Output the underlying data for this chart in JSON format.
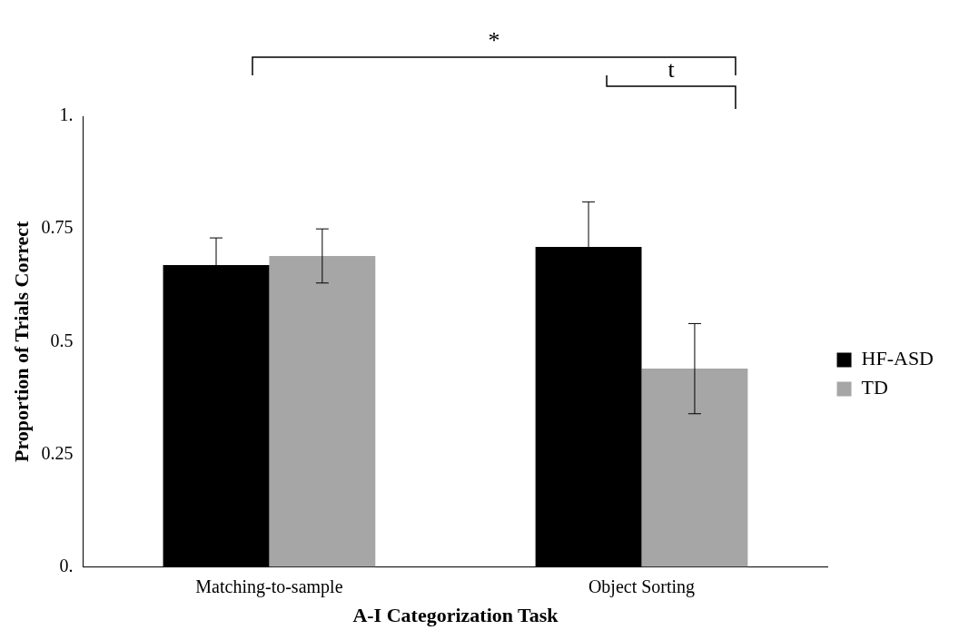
{
  "chart_data": {
    "type": "bar",
    "xlabel": "A-I Categorization Task",
    "ylabel": "Proportion of Trials Correct",
    "categories": [
      "Matching-to-sample",
      "Object Sorting"
    ],
    "series": [
      {
        "name": "HF-ASD",
        "color": "#000000",
        "values": [
          0.67,
          0.71
        ],
        "errors": [
          0.06,
          0.1
        ]
      },
      {
        "name": "TD",
        "color": "#a6a6a6",
        "values": [
          0.69,
          0.44
        ],
        "errors": [
          0.06,
          0.1
        ]
      }
    ],
    "ylim": [
      0,
      1
    ],
    "yticks": [
      {
        "value": 0,
        "label": "0."
      },
      0.25,
      0.5,
      0.75,
      {
        "value": 1,
        "label": "1."
      }
    ],
    "grid": false,
    "legend": "right",
    "annotations": [
      "*",
      "t"
    ]
  }
}
